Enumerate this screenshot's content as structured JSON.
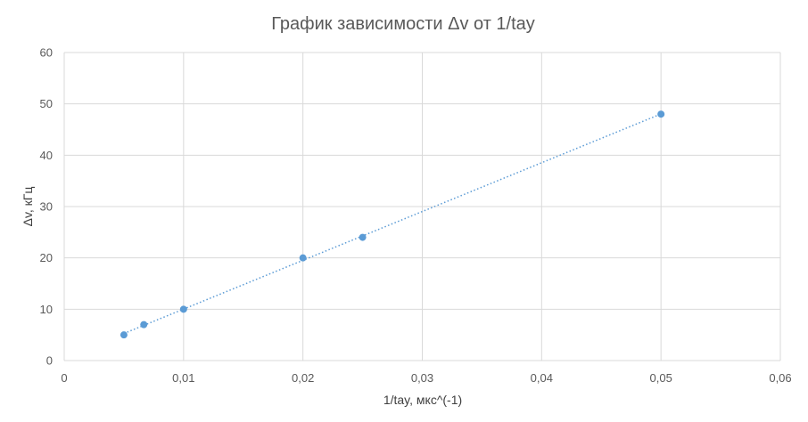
{
  "chart_data": {
    "type": "scatter",
    "title": "График зависимости Δv от 1/tay",
    "xlabel": "1/tay, мкс^(-1)",
    "ylabel": "Δv, кГц",
    "xlim": [
      0,
      0.06
    ],
    "ylim": [
      0,
      60
    ],
    "x_ticks": [
      0,
      0.01,
      0.02,
      0.03,
      0.04,
      0.05,
      0.06
    ],
    "x_tick_labels": [
      "0",
      "0,01",
      "0,02",
      "0,03",
      "0,04",
      "0,05",
      "0,06"
    ],
    "y_ticks": [
      0,
      10,
      20,
      30,
      40,
      50,
      60
    ],
    "y_tick_labels": [
      "0",
      "10",
      "20",
      "30",
      "40",
      "50",
      "60"
    ],
    "grid": true,
    "legend": "none",
    "series": [
      {
        "x": [
          0.005,
          0.00667,
          0.01,
          0.02,
          0.025,
          0.05
        ],
        "y": [
          5,
          7,
          10,
          20,
          24,
          48
        ],
        "marker_color": "#5b9bd5",
        "trendline": {
          "type": "linear",
          "style": "dotted",
          "color": "#5b9bd5"
        }
      }
    ],
    "colors": {
      "grid": "#d9d9d9",
      "text": "#595959"
    }
  }
}
